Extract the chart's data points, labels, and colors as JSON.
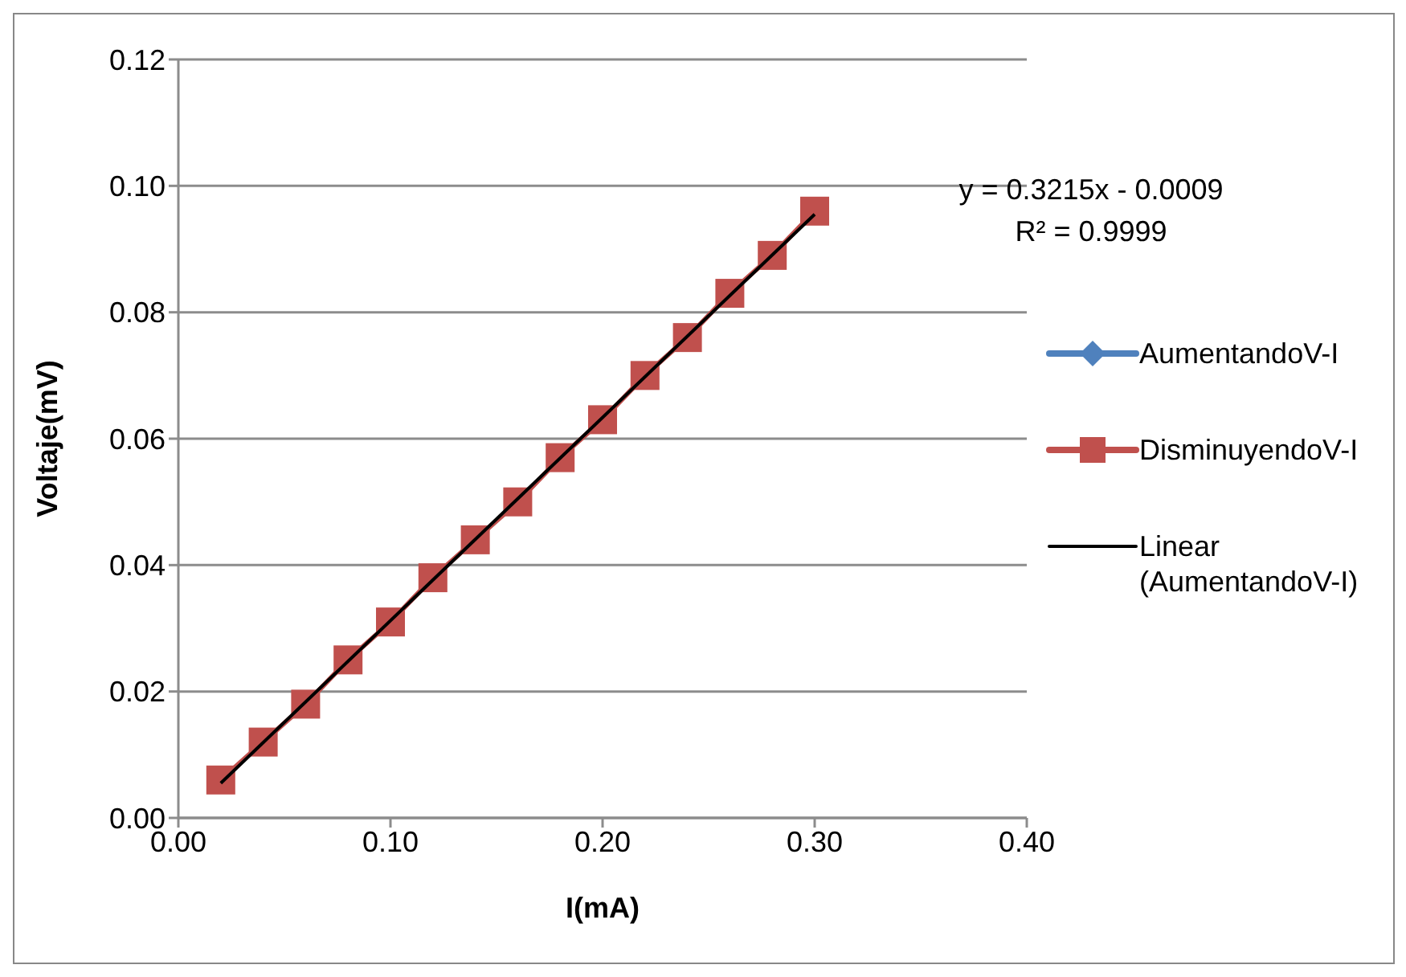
{
  "chart_data": {
    "type": "line",
    "xlabel": "I(mA)",
    "ylabel": "Voltaje(mV)",
    "annotations": [
      "y = 0.3215x - 0.0009",
      "R² = 0.9999"
    ],
    "x": [
      0.02,
      0.04,
      0.06,
      0.08,
      0.1,
      0.12,
      0.14,
      0.16,
      0.18,
      0.2,
      0.22,
      0.24,
      0.26,
      0.28,
      0.3
    ],
    "series": [
      {
        "name": "AumentandoV-I",
        "color": "#4f81bd",
        "marker": "diamond",
        "values": [
          null,
          null,
          null,
          null,
          null,
          null,
          null,
          null,
          null,
          null,
          null,
          null,
          null,
          null,
          null
        ]
      },
      {
        "name": "DisminuyendoV-I",
        "color": "#c0504d",
        "marker": "square",
        "values": [
          0.006,
          0.012,
          0.018,
          0.025,
          0.031,
          0.038,
          0.044,
          0.05,
          0.057,
          0.063,
          0.07,
          0.076,
          0.083,
          0.089,
          0.096
        ]
      },
      {
        "name": "Linear (AumentandoV-I)",
        "type": "line",
        "color": "#000000",
        "marker": "none",
        "x": [
          0.02,
          0.3
        ],
        "values": [
          0.0055,
          0.0955
        ]
      }
    ],
    "xlim": [
      0,
      0.4
    ],
    "xticks": [
      {
        "value": 0,
        "label": "0.00"
      },
      {
        "value": 0.1,
        "label": "0.10"
      },
      {
        "value": 0.2,
        "label": "0.20"
      },
      {
        "value": 0.3,
        "label": "0.30"
      },
      {
        "value": 0.4,
        "label": "0.40"
      }
    ],
    "ylim": [
      0,
      0.12
    ],
    "yticks": [
      {
        "value": 0,
        "label": "0.00"
      },
      {
        "value": 0.02,
        "label": "0.02"
      },
      {
        "value": 0.04,
        "label": "0.04"
      },
      {
        "value": 0.06,
        "label": "0.06"
      },
      {
        "value": 0.08,
        "label": "0.08"
      },
      {
        "value": 0.1,
        "label": "0.10"
      },
      {
        "value": 0.12,
        "label": "0.12"
      }
    ],
    "grid": "y",
    "legend": "right"
  }
}
